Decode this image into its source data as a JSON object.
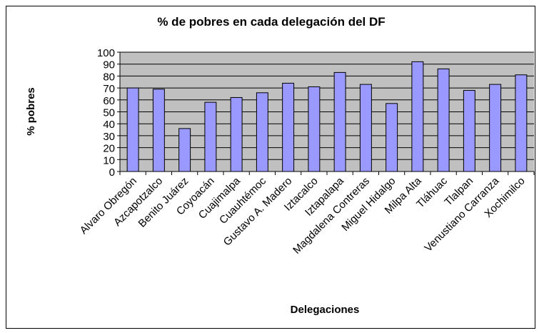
{
  "chart_data": {
    "type": "bar",
    "title": "% de pobres en cada delegación del DF",
    "x_label": "Delegaciones",
    "y_label": "% pobres",
    "categories": [
      "Alvaro Obregón",
      "Azcapotzalco",
      "Benito Juárez",
      "Coyoacán",
      "Cuajimalpa",
      "Cuauhtémoc",
      "Gustavo A. Madero",
      "Iztacalco",
      "Iztapalapa",
      "Magdalena Contreras",
      "Miguel Hidalgo",
      "Milpa Alta",
      "Tláhuac",
      "Tlalpan",
      "Venustiano Carranza",
      "Xochimilco"
    ],
    "values": [
      70,
      69,
      36,
      58,
      62,
      66,
      74,
      71,
      83,
      73,
      57,
      92,
      86,
      68,
      73,
      81
    ],
    "color": "#9999ff",
    "ylim": [
      0,
      100
    ],
    "yticks": [
      0,
      10,
      20,
      30,
      40,
      50,
      60,
      70,
      80,
      90,
      100
    ],
    "grid": true
  }
}
